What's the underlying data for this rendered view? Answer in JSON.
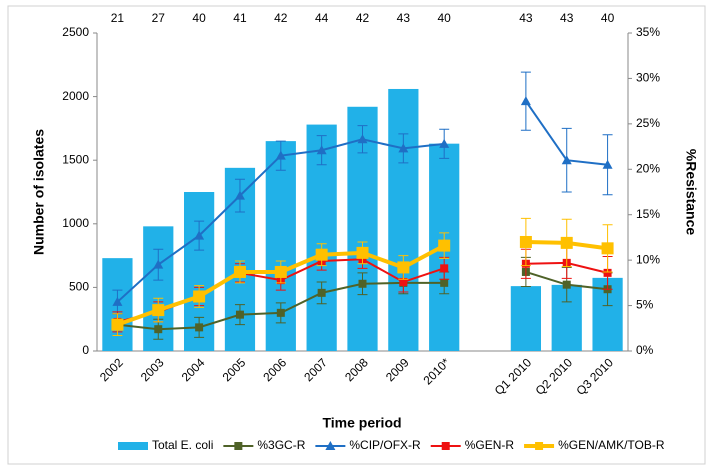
{
  "chart_data": {
    "type": "combo",
    "categories": [
      "2002",
      "2003",
      "2004",
      "2005",
      "2006",
      "2007",
      "2008",
      "2009",
      "2010*",
      null,
      "Q1 2010",
      "Q2 2010",
      "Q3 2010"
    ],
    "top_labels": [
      21,
      27,
      40,
      41,
      42,
      44,
      42,
      43,
      40,
      null,
      43,
      43,
      40
    ],
    "x_label": "Time period",
    "y_label": "Number of isolates",
    "y2_label": "%Resistance",
    "ylim": [
      0,
      2500
    ],
    "yticks": [
      0,
      500,
      1000,
      1500,
      2000,
      2500
    ],
    "y2lim": [
      0,
      35
    ],
    "y2ticks": [
      {
        "value": 0,
        "label": "0%"
      },
      {
        "value": 5,
        "label": "5%"
      },
      {
        "value": 10,
        "label": "10%"
      },
      {
        "value": 15,
        "label": "15%"
      },
      {
        "value": 20,
        "label": "20%"
      },
      {
        "value": 25,
        "label": "25%"
      },
      {
        "value": 30,
        "label": "30%"
      },
      {
        "value": 35,
        "label": "35%"
      }
    ],
    "legend": "bottom",
    "series": [
      {
        "name": "Total E. coli",
        "type": "bar",
        "color": "#21b1e8",
        "values": [
          730,
          980,
          1250,
          1440,
          1650,
          1780,
          1920,
          2060,
          1630,
          null,
          510,
          520,
          575
        ]
      },
      {
        "name": "%3GC-R",
        "type": "line",
        "axis": "y2",
        "marker": "square",
        "color": "#4f6228",
        "values": [
          2.9,
          2.4,
          2.6,
          4.0,
          4.2,
          6.4,
          7.4,
          7.5,
          7.5,
          null,
          8.7,
          7.3,
          6.8
        ],
        "errors": [
          1.2,
          1.1,
          1.1,
          1.1,
          1.1,
          1.2,
          1.2,
          1.2,
          1.2,
          null,
          1.6,
          1.9,
          1.8
        ]
      },
      {
        "name": "%CIP/OFX-R",
        "type": "line",
        "axis": "y2",
        "marker": "triangle",
        "color": "#1f6fc5",
        "values": [
          5.4,
          9.5,
          12.7,
          17.1,
          21.5,
          22.1,
          23.3,
          22.3,
          22.8,
          null,
          27.5,
          21.0,
          20.5
        ],
        "errors": [
          1.3,
          1.7,
          1.6,
          1.8,
          1.6,
          1.6,
          1.5,
          1.6,
          1.6,
          null,
          3.2,
          3.5,
          3.3
        ]
      },
      {
        "name": "%GEN-R",
        "type": "line",
        "axis": "y2",
        "marker": "square",
        "color": "#ee1111",
        "values": [
          3.2,
          4.3,
          6.0,
          8.6,
          7.8,
          9.9,
          10.1,
          7.6,
          9.1,
          null,
          9.6,
          9.7,
          8.6
        ],
        "errors": [
          1.1,
          1.1,
          1.0,
          1.0,
          1.1,
          1.0,
          1.0,
          1.1,
          1.2,
          null,
          1.6,
          1.7,
          1.8
        ]
      },
      {
        "name": "%GEN/AMK/TOB-R",
        "type": "line",
        "axis": "y2",
        "marker": "square",
        "color": "#ffc000",
        "values": [
          2.9,
          4.5,
          6.0,
          8.7,
          8.7,
          10.6,
          10.8,
          9.2,
          11.6,
          null,
          12.0,
          11.9,
          11.3
        ],
        "errors": [
          1.2,
          1.3,
          1.2,
          1.2,
          1.2,
          1.2,
          1.2,
          1.3,
          1.4,
          null,
          2.6,
          2.6,
          2.6
        ]
      }
    ]
  }
}
